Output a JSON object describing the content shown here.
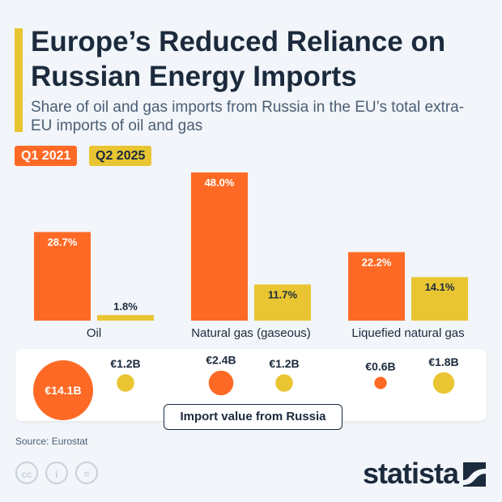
{
  "header": {
    "title": "Europe’s Reduced Reliance on Russian Energy Imports",
    "subtitle": "Share of oil and gas imports from Russia in the EU’s total extra-EU imports of oil and gas"
  },
  "colors": {
    "q1": "#fe6a25",
    "q2": "#e9c532",
    "text": "#1b2a3c"
  },
  "chart_data": {
    "type": "bar",
    "categories": [
      "Oil",
      "Natural gas (gaseous)",
      "Liquefied natural gas"
    ],
    "series": [
      {
        "name": "Q1 2021",
        "values": [
          28.7,
          48.0,
          22.2
        ],
        "labels": [
          "28.7%",
          "48.0%",
          "22.2%"
        ]
      },
      {
        "name": "Q2 2025",
        "values": [
          1.8,
          11.7,
          14.1
        ],
        "labels": [
          "1.8%",
          "11.7%",
          "14.1%"
        ]
      }
    ],
    "ylim": [
      0,
      48
    ],
    "bubbles": {
      "title": "Import value from Russia",
      "unit": "€ billion",
      "series": [
        {
          "name": "Q1 2021",
          "values": [
            14.1,
            2.4,
            0.6
          ],
          "labels": [
            "€14.1B",
            "€2.4B",
            "€0.6B"
          ]
        },
        {
          "name": "Q2 2025",
          "values": [
            1.2,
            1.2,
            1.8
          ],
          "labels": [
            "€1.2B",
            "€1.2B",
            "€1.8B"
          ]
        }
      ]
    }
  },
  "footer": {
    "source": "Source: Eurostat",
    "logo": "statista",
    "cc_icons": [
      "cc-icon",
      "attribution-icon",
      "no-derivatives-icon"
    ],
    "cc_labels": [
      "cc",
      "i",
      "="
    ]
  }
}
